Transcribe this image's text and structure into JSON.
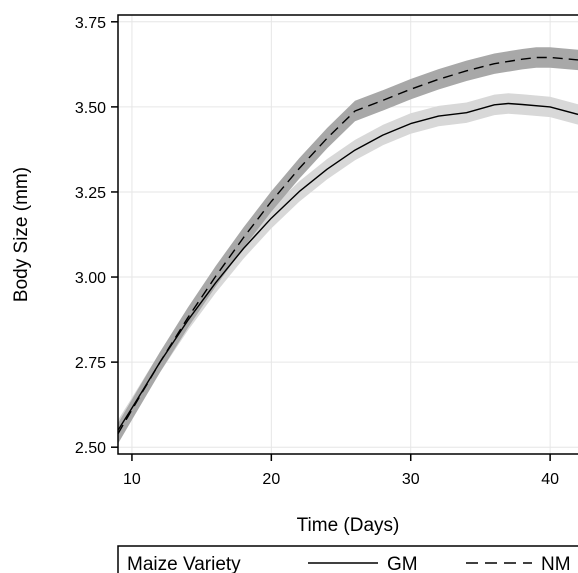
{
  "chart_data": {
    "type": "line",
    "title": "",
    "xlabel": "Time (Days)",
    "ylabel": "Body Size (mm)",
    "xlim": [
      9,
      42
    ],
    "ylim": [
      2.48,
      3.77
    ],
    "xticks": [
      10,
      20,
      30,
      40
    ],
    "xtick_labels": [
      "10",
      "20",
      "30",
      "40"
    ],
    "yticks": [
      2.5,
      2.75,
      3.0,
      3.25,
      3.5,
      3.75
    ],
    "ytick_labels": [
      "2.50",
      "2.75",
      "3.00",
      "3.25",
      "3.50",
      "3.75"
    ],
    "grid": true,
    "legend": {
      "title": "Maize Variety",
      "placement": "bottom",
      "entries": [
        "GM",
        "NM"
      ]
    },
    "series": [
      {
        "name": "GM",
        "line_style": "solid",
        "line_color": "#000000",
        "band_color": "#d8d8d8",
        "x": [
          9,
          10,
          12,
          14,
          16,
          18,
          20,
          22,
          24,
          26,
          28,
          30,
          32,
          34,
          36,
          37,
          38,
          40,
          42
        ],
        "y": [
          2.55,
          2.615,
          2.749,
          2.872,
          2.983,
          3.084,
          3.173,
          3.251,
          3.317,
          3.373,
          3.417,
          3.451,
          3.473,
          3.483,
          3.506,
          3.51,
          3.507,
          3.5,
          3.478
        ],
        "band_halfwidth": 0.03
      },
      {
        "name": "NM",
        "line_style": "dashed",
        "line_color": "#000000",
        "band_color": "#a8a8a8",
        "x": [
          9,
          10,
          12,
          14,
          16,
          18,
          20,
          22,
          24,
          26,
          28,
          30,
          32,
          34,
          36,
          38,
          39,
          40,
          42
        ],
        "y": [
          2.54,
          2.61,
          2.749,
          2.88,
          3.002,
          3.116,
          3.222,
          3.319,
          3.408,
          3.488,
          3.519,
          3.552,
          3.581,
          3.606,
          3.627,
          3.64,
          3.645,
          3.645,
          3.638
        ],
        "band_halfwidth": 0.03
      }
    ]
  }
}
